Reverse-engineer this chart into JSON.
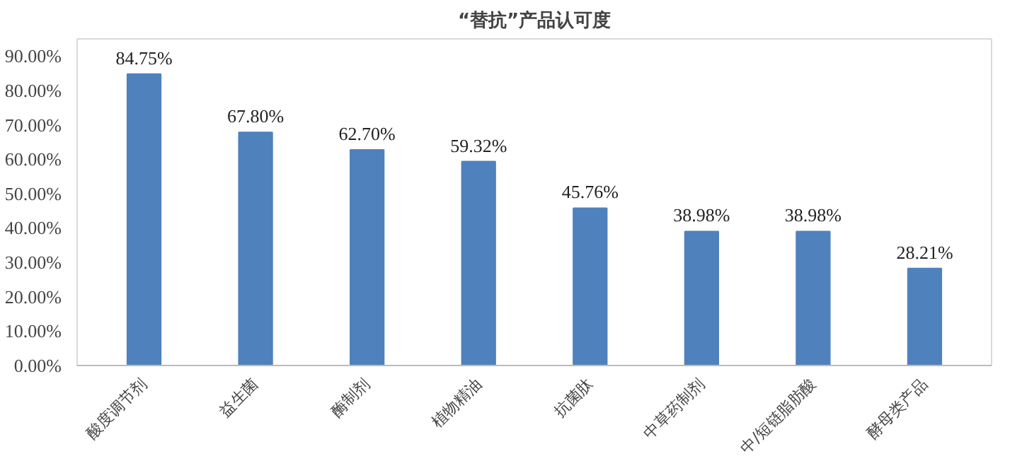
{
  "chart_data": {
    "type": "bar",
    "title": "“替抗”产品认可度",
    "categories": [
      "酸度调节剂",
      "益生菌",
      "酶制剂",
      "植物精油",
      "抗菌肽",
      "中草药制剂",
      "中/短链脂肪酸",
      "酵母类产品"
    ],
    "values": [
      84.75,
      67.8,
      62.7,
      59.32,
      45.76,
      38.98,
      38.98,
      28.21
    ],
    "value_labels": [
      "84.75%",
      "67.80%",
      "62.70%",
      "59.32%",
      "45.76%",
      "38.98%",
      "38.98%",
      "28.21%"
    ],
    "color": "#4f81bd",
    "ylim": [
      0,
      95
    ],
    "yticks": [
      {
        "value": 0,
        "label": "0.00%"
      },
      {
        "value": 10,
        "label": "10.00%"
      },
      {
        "value": 20,
        "label": "20.00%"
      },
      {
        "value": 30,
        "label": "30.00%"
      },
      {
        "value": 40,
        "label": "40.00%"
      },
      {
        "value": 50,
        "label": "50.00%"
      },
      {
        "value": 60,
        "label": "60.00%"
      },
      {
        "value": 70,
        "label": "70.00%"
      },
      {
        "value": 80,
        "label": "80.00%"
      },
      {
        "value": 90,
        "label": "90.00%"
      }
    ],
    "grid": false
  }
}
